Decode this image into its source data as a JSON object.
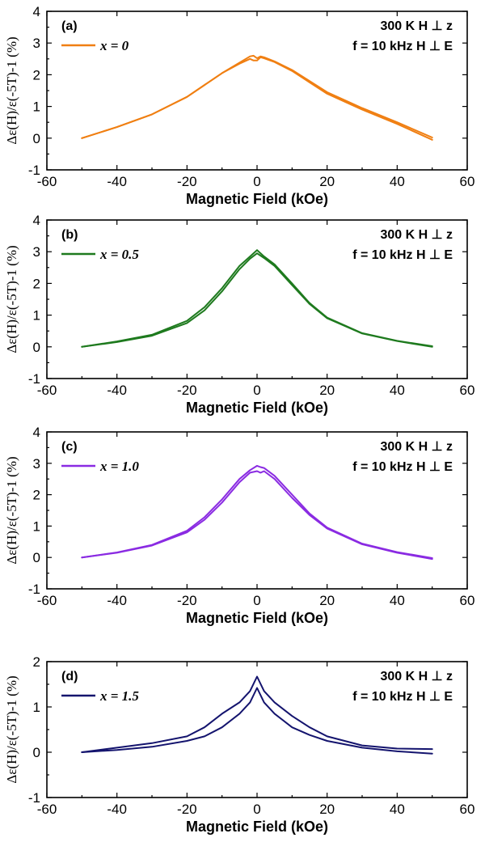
{
  "chart_data": [
    {
      "type": "line",
      "panel_label": "(a)",
      "conditions": [
        "300 K H ⊥ z",
        "f = 10 kHz  H ⊥ E"
      ],
      "xlabel": "Magnetic Field (kOe)",
      "ylabel": "Δε(H)/ε(-5T)-1 (%)",
      "xlim": [
        -60,
        60
      ],
      "ylim": [
        -1,
        4
      ],
      "xticks": [
        -60,
        -40,
        -20,
        0,
        20,
        40,
        60
      ],
      "yticks": [
        -1,
        0,
        1,
        2,
        3,
        4
      ],
      "color": "#f07f12",
      "series": [
        {
          "name": "x = 0",
          "x": [
            -50,
            -40,
            -30,
            -20,
            -10,
            -5,
            -2,
            -1,
            0,
            1,
            2,
            5,
            10,
            20,
            30,
            40,
            50
          ],
          "y": [
            0,
            0.35,
            0.75,
            1.3,
            2.05,
            2.35,
            2.5,
            2.45,
            2.45,
            2.55,
            2.52,
            2.4,
            2.12,
            1.4,
            0.9,
            0.45,
            -0.05
          ]
        },
        {
          "name": "",
          "x": [
            -50,
            -40,
            -30,
            -20,
            -10,
            -5,
            -2,
            -1,
            0,
            1,
            2,
            5,
            10,
            20,
            30,
            40,
            50
          ],
          "y": [
            0,
            0.35,
            0.75,
            1.3,
            2.05,
            2.38,
            2.58,
            2.6,
            2.52,
            2.58,
            2.55,
            2.42,
            2.15,
            1.45,
            0.95,
            0.5,
            0.02
          ]
        }
      ]
    },
    {
      "type": "line",
      "panel_label": "(b)",
      "conditions": [
        "300 K H ⊥ z",
        "f = 10 kHz  H ⊥ E"
      ],
      "xlabel": "Magnetic Field (kOe)",
      "ylabel": "Δε(H)/ε(-5T)-1 (%)",
      "xlim": [
        -60,
        60
      ],
      "ylim": [
        -1,
        4
      ],
      "xticks": [
        -60,
        -40,
        -20,
        0,
        20,
        40,
        60
      ],
      "yticks": [
        -1,
        0,
        1,
        2,
        3,
        4
      ],
      "color": "#1e7a1e",
      "series": [
        {
          "name": "x = 0.5",
          "x": [
            -50,
            -40,
            -30,
            -20,
            -15,
            -10,
            -5,
            -2,
            0,
            2,
            5,
            10,
            15,
            20,
            30,
            40,
            50
          ],
          "y": [
            0,
            0.15,
            0.35,
            0.75,
            1.15,
            1.75,
            2.45,
            2.78,
            2.95,
            2.8,
            2.55,
            1.95,
            1.35,
            0.9,
            0.42,
            0.18,
            0.0
          ]
        },
        {
          "name": "",
          "x": [
            -50,
            -40,
            -30,
            -20,
            -15,
            -10,
            -5,
            -2,
            0,
            2,
            5,
            10,
            15,
            20,
            30,
            40,
            50
          ],
          "y": [
            0,
            0.17,
            0.38,
            0.82,
            1.25,
            1.85,
            2.55,
            2.85,
            3.05,
            2.85,
            2.6,
            2.0,
            1.38,
            0.92,
            0.43,
            0.19,
            0.02
          ]
        }
      ]
    },
    {
      "type": "line",
      "panel_label": "(c)",
      "conditions": [
        "300 K H ⊥ z",
        "f = 10 kHz  H ⊥ E"
      ],
      "xlabel": "Magnetic Field (kOe)",
      "ylabel": "Δε(H)/ε(-5T)-1 (%)",
      "xlim": [
        -60,
        60
      ],
      "ylim": [
        -1,
        4
      ],
      "xticks": [
        -60,
        -40,
        -20,
        0,
        20,
        40,
        60
      ],
      "yticks": [
        -1,
        0,
        1,
        2,
        3,
        4
      ],
      "color": "#8a2be2",
      "series": [
        {
          "name": "x = 1.0",
          "x": [
            -50,
            -40,
            -30,
            -20,
            -15,
            -10,
            -5,
            -2,
            0,
            1,
            2,
            5,
            10,
            15,
            20,
            30,
            40,
            50
          ],
          "y": [
            0,
            0.15,
            0.38,
            0.8,
            1.2,
            1.75,
            2.4,
            2.7,
            2.75,
            2.7,
            2.75,
            2.5,
            1.9,
            1.35,
            0.92,
            0.42,
            0.15,
            -0.05
          ]
        },
        {
          "name": "",
          "x": [
            -50,
            -40,
            -30,
            -20,
            -15,
            -10,
            -5,
            -2,
            0,
            1,
            2,
            5,
            10,
            15,
            20,
            30,
            40,
            50
          ],
          "y": [
            0,
            0.16,
            0.4,
            0.85,
            1.28,
            1.85,
            2.5,
            2.78,
            2.92,
            2.88,
            2.85,
            2.6,
            2.0,
            1.4,
            0.95,
            0.44,
            0.17,
            -0.02
          ]
        }
      ]
    },
    {
      "type": "line",
      "panel_label": "(d)",
      "conditions": [
        "300 K H ⊥ z",
        "f = 10 kHz  H ⊥ E"
      ],
      "xlabel": "Magnetic Field (kOe)",
      "ylabel": "Δε(H)/ε(-5T)-1 (%)",
      "xlim": [
        -60,
        60
      ],
      "ylim": [
        -1,
        2
      ],
      "xticks": [
        -60,
        -40,
        -20,
        0,
        20,
        40,
        60
      ],
      "yticks": [
        -1,
        0,
        1,
        2
      ],
      "color": "#14146e",
      "series": [
        {
          "name": "x = 1.5",
          "x": [
            -50,
            -40,
            -30,
            -20,
            -15,
            -10,
            -5,
            -2,
            0,
            2,
            5,
            10,
            15,
            20,
            30,
            40,
            50
          ],
          "y": [
            0,
            0.05,
            0.12,
            0.25,
            0.35,
            0.55,
            0.85,
            1.1,
            1.42,
            1.1,
            0.85,
            0.55,
            0.38,
            0.25,
            0.1,
            0.02,
            -0.03
          ]
        },
        {
          "name": "",
          "x": [
            -50,
            -40,
            -30,
            -20,
            -15,
            -10,
            -5,
            -2,
            0,
            2,
            5,
            10,
            15,
            20,
            30,
            40,
            50
          ],
          "y": [
            0,
            0.1,
            0.2,
            0.35,
            0.55,
            0.85,
            1.1,
            1.35,
            1.67,
            1.35,
            1.1,
            0.8,
            0.55,
            0.35,
            0.15,
            0.08,
            0.07
          ]
        }
      ]
    }
  ]
}
